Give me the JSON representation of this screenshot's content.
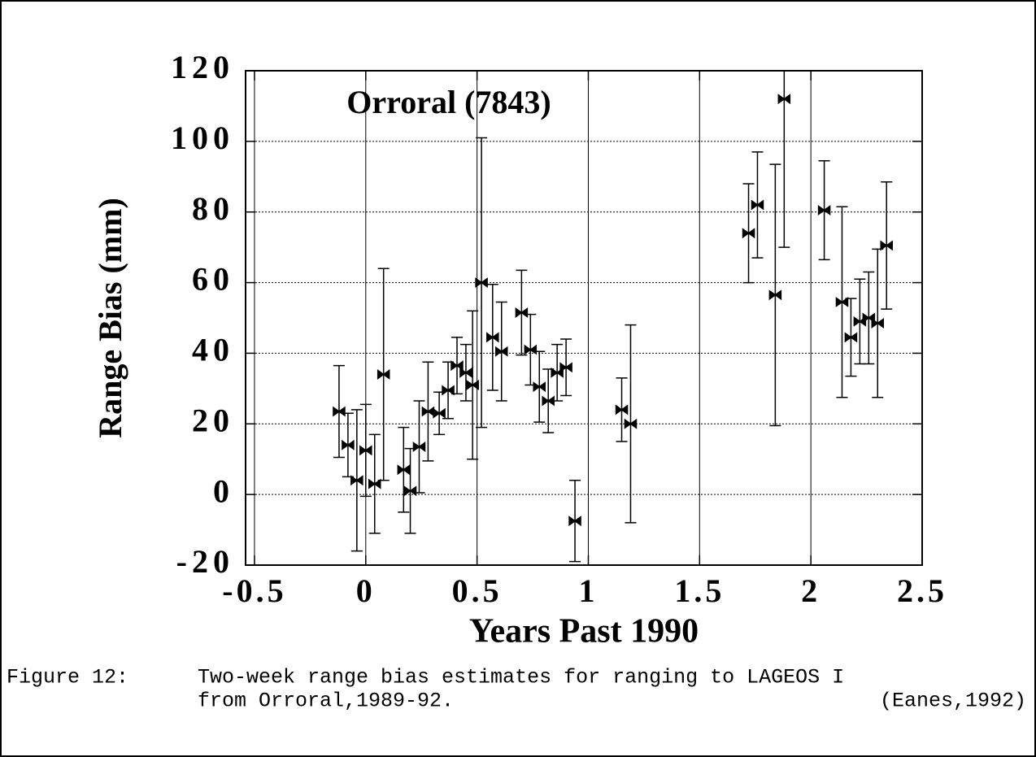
{
  "chart_data": {
    "type": "errorbar",
    "annotation": "Orroral  (7843)",
    "x_label": "Years Past 1990",
    "y_label": "Range Bias (mm)",
    "caption": {
      "label": "Figure 12:",
      "line1": "Two-week range bias estimates for ranging to LAGEOS I",
      "line2": "from Orroral,1989-92.",
      "source": "(Eanes,1992)"
    },
    "xlim": [
      -0.54,
      2.5
    ],
    "xticks": [
      -0.5,
      0,
      0.5,
      1,
      1.5,
      2,
      2.5
    ],
    "ylim": [
      -20,
      120
    ],
    "yticks": [
      -20,
      0,
      20,
      40,
      60,
      80,
      100,
      120
    ],
    "grid": true,
    "series": [
      {
        "color": "#000000",
        "x": [
          -0.12,
          -0.08,
          -0.04,
          0.0,
          0.04,
          0.08,
          0.17,
          0.2,
          0.24,
          0.28,
          0.33,
          0.37,
          0.41,
          0.45,
          0.48,
          0.52,
          0.57,
          0.61,
          0.7,
          0.74,
          0.78,
          0.82,
          0.86,
          0.9,
          0.94,
          1.15,
          1.19,
          1.72,
          1.76,
          1.84,
          1.88,
          2.06,
          2.14,
          2.18,
          2.22,
          2.26,
          2.3,
          2.34
        ],
        "values": [
          23.5,
          14,
          4,
          12.5,
          3,
          34,
          7,
          1,
          13.5,
          23.5,
          23,
          29.5,
          36.5,
          34.5,
          31,
          60,
          44.5,
          40.5,
          51.5,
          41,
          30.5,
          26.5,
          34.5,
          36,
          -7.5,
          24,
          20,
          74,
          82,
          56.5,
          112,
          80.5,
          54.5,
          44.5,
          49,
          50,
          48.5,
          70.5
        ],
        "errors": [
          13,
          9,
          20,
          13,
          14,
          30,
          12,
          12,
          13,
          14,
          6,
          8,
          8,
          8,
          21,
          41,
          15,
          14,
          12,
          10,
          10,
          9,
          8,
          8,
          11.5,
          9,
          28,
          14,
          15,
          37,
          42,
          14,
          27,
          11,
          12,
          13,
          21,
          18
        ]
      }
    ]
  }
}
